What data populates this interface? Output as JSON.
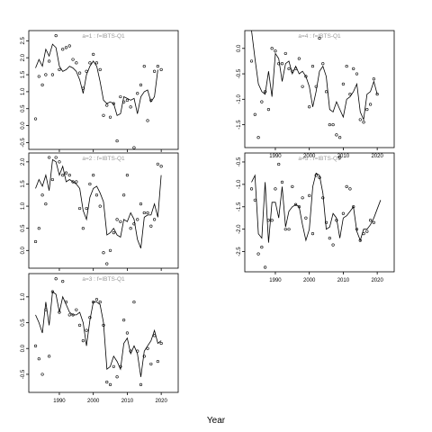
{
  "chart_data": {
    "type": "line",
    "xlabel": "Year",
    "xlim": [
      1981,
      2025
    ],
    "xticks": [
      1990,
      2000,
      2010,
      2020
    ],
    "grid": false,
    "panels": [
      {
        "title": "a=1  :  f=IBTS-Q1",
        "ylim": [
          -0.7,
          2.8
        ],
        "yticks": [
          -0.5,
          0.0,
          0.5,
          1.0,
          1.5,
          2.0,
          2.5
        ],
        "line_x": [
          1983,
          1984,
          1985,
          1986,
          1987,
          1988,
          1989,
          1990,
          1991,
          1992,
          1993,
          1994,
          1995,
          1996,
          1997,
          1998,
          1999,
          2000,
          2001,
          2002,
          2003,
          2004,
          2005,
          2006,
          2007,
          2008,
          2009,
          2010,
          2011,
          2012,
          2013,
          2014,
          2015,
          2016,
          2017,
          2018,
          2019
        ],
        "line_y": [
          1.7,
          1.95,
          1.75,
          2.25,
          2.05,
          2.4,
          2.3,
          1.75,
          1.6,
          1.65,
          1.75,
          1.7,
          1.6,
          1.35,
          0.95,
          1.5,
          1.75,
          1.9,
          1.75,
          1.3,
          0.75,
          0.65,
          0.7,
          0.65,
          0.3,
          0.35,
          0.85,
          0.8,
          0.75,
          0.8,
          0.35,
          0.85,
          1.0,
          1.05,
          0.7,
          0.85,
          1.65
        ],
        "points_x": [
          1983,
          1984,
          1985,
          1986,
          1987,
          1988,
          1989,
          1990,
          1991,
          1992,
          1993,
          1994,
          1995,
          1996,
          1997,
          1998,
          1999,
          2000,
          2001,
          2002,
          2003,
          2004,
          2005,
          2006,
          2007,
          2008,
          2009,
          2010,
          2011,
          2012,
          2013,
          2014,
          2015,
          2016,
          2017,
          2018,
          2019,
          2020
        ],
        "points_y": [
          0.2,
          1.45,
          1.2,
          1.5,
          1.9,
          1.5,
          2.65,
          1.65,
          2.25,
          2.3,
          2.35,
          1.95,
          1.85,
          1.55,
          1.1,
          1.6,
          1.85,
          2.1,
          1.85,
          1.65,
          0.3,
          0.6,
          0.25,
          0.65,
          -0.45,
          0.85,
          0.7,
          0.75,
          0.55,
          -0.65,
          0.95,
          1.2,
          1.75,
          0.15,
          0.75,
          1.6,
          1.75,
          1.65
        ]
      },
      {
        "title": "a=2  :  f=IBTS-Q1",
        "ylim": [
          -0.4,
          2.2
        ],
        "yticks": [
          0.0,
          0.5,
          1.0,
          1.5,
          2.0
        ],
        "line_x": [
          1983,
          1984,
          1985,
          1986,
          1987,
          1988,
          1989,
          1990,
          1991,
          1992,
          1993,
          1994,
          1995,
          1996,
          1997,
          1998,
          1999,
          2000,
          2001,
          2002,
          2003,
          2004,
          2005,
          2006,
          2007,
          2008,
          2009,
          2010,
          2011,
          2012,
          2013,
          2014,
          2015,
          2016,
          2017,
          2018,
          2019,
          2020
        ],
        "line_y": [
          1.4,
          1.6,
          1.45,
          1.7,
          1.35,
          2.05,
          2.0,
          1.7,
          1.9,
          1.55,
          1.6,
          1.55,
          1.5,
          1.4,
          0.9,
          0.7,
          1.2,
          1.4,
          1.45,
          1.3,
          1.1,
          0.35,
          0.4,
          0.5,
          0.35,
          0.3,
          0.7,
          0.65,
          0.85,
          0.7,
          0.25,
          0.05,
          0.75,
          0.8,
          0.8,
          1.05,
          0.75,
          1.7
        ],
        "points_x": [
          1983,
          1984,
          1985,
          1986,
          1987,
          1988,
          1989,
          1990,
          1991,
          1992,
          1993,
          1994,
          1995,
          1996,
          1997,
          1998,
          1999,
          2000,
          2001,
          2002,
          2003,
          2004,
          2005,
          2006,
          2007,
          2008,
          2009,
          2010,
          2011,
          2012,
          2013,
          2014,
          2015,
          2016,
          2017,
          2018,
          2019,
          2020
        ],
        "points_y": [
          0.2,
          0.5,
          1.25,
          1.05,
          2.1,
          1.6,
          2.1,
          2.0,
          1.7,
          1.75,
          1.7,
          1.55,
          1.55,
          0.95,
          0.5,
          0.95,
          1.5,
          1.7,
          1.25,
          1.0,
          -0.05,
          -0.3,
          0.0,
          0.4,
          0.7,
          0.65,
          1.25,
          1.7,
          0.5,
          0.6,
          0.7,
          1.05,
          0.85,
          0.85,
          0.55,
          0.7,
          1.95,
          1.9
        ]
      },
      {
        "title": "a=3  :  f=IBTS-Q1",
        "ylim": [
          -0.85,
          1.45
        ],
        "yticks": [
          -0.5,
          0.0,
          0.5,
          1.0
        ],
        "line_x": [
          1983,
          1984,
          1985,
          1986,
          1987,
          1988,
          1989,
          1990,
          1991,
          1992,
          1993,
          1994,
          1995,
          1996,
          1997,
          1998,
          1999,
          2000,
          2001,
          2002,
          2003,
          2004,
          2005,
          2006,
          2007,
          2008,
          2009,
          2010,
          2011,
          2012,
          2013,
          2014,
          2015,
          2016,
          2017,
          2018,
          2019,
          2020
        ],
        "line_y": [
          0.65,
          0.5,
          0.3,
          0.9,
          0.45,
          1.1,
          1.05,
          0.7,
          1.0,
          0.85,
          0.7,
          0.65,
          0.65,
          0.7,
          0.5,
          0.05,
          0.55,
          0.9,
          0.9,
          0.85,
          0.5,
          -0.4,
          -0.35,
          -0.15,
          -0.25,
          -0.4,
          0.1,
          0.2,
          -0.1,
          0.05,
          -0.1,
          -0.55,
          -0.05,
          0.05,
          0.15,
          0.35,
          0.1,
          0.15
        ],
        "points_x": [
          1983,
          1984,
          1985,
          1986,
          1987,
          1988,
          1989,
          1990,
          1991,
          1992,
          1993,
          1994,
          1995,
          1996,
          1997,
          1998,
          1999,
          2000,
          2001,
          2002,
          2003,
          2004,
          2005,
          2006,
          2007,
          2008,
          2009,
          2010,
          2011,
          2012,
          2013,
          2014,
          2015,
          2016,
          2017,
          2018,
          2019,
          2020
        ],
        "points_y": [
          0.05,
          -0.2,
          -0.5,
          0.75,
          -0.15,
          1.1,
          1.35,
          0.7,
          1.3,
          0.9,
          0.65,
          0.65,
          0.75,
          0.45,
          0.15,
          0.35,
          0.6,
          0.9,
          0.95,
          0.9,
          0.45,
          -0.65,
          -0.7,
          -0.35,
          -0.55,
          -0.35,
          0.55,
          0.3,
          -0.05,
          0.9,
          -0.05,
          -0.7,
          -0.15,
          0.0,
          -0.3,
          0.25,
          -0.25,
          0.1
        ]
      },
      {
        "title": "a=4  :  f=IBTS-Q1",
        "ylim": [
          -1.95,
          0.35
        ],
        "yticks": [
          -1.5,
          -1.0,
          -0.5,
          0.0
        ],
        "line_x": [
          1983,
          1984,
          1985,
          1986,
          1987,
          1988,
          1989,
          1990,
          1991,
          1992,
          1993,
          1994,
          1995,
          1996,
          1997,
          1998,
          1999,
          2000,
          2001,
          2002,
          2003,
          2004,
          2005,
          2006,
          2007,
          2008,
          2009,
          2010,
          2011,
          2012,
          2013,
          2014,
          2015,
          2016,
          2017,
          2018,
          2019,
          2020
        ],
        "line_y": [
          0.35,
          -0.2,
          -0.7,
          -0.85,
          -0.9,
          -0.45,
          -0.95,
          -0.1,
          -0.2,
          -0.65,
          -0.3,
          -0.25,
          -0.5,
          -0.35,
          -0.5,
          -0.45,
          -0.55,
          -0.75,
          -1.15,
          -0.85,
          -0.45,
          -0.35,
          -0.55,
          -1.2,
          -1.25,
          -1.05,
          -1.2,
          -1.35,
          -1.0,
          -0.95,
          -0.85,
          -0.7,
          -1.25,
          -1.4,
          -0.9,
          -0.85,
          -0.65,
          -0.9
        ],
        "points_x": [
          1983,
          1984,
          1985,
          1986,
          1987,
          1988,
          1989,
          1990,
          1991,
          1992,
          1993,
          1994,
          1995,
          1996,
          1997,
          1998,
          1999,
          2000,
          2001,
          2002,
          2003,
          2004,
          2005,
          2006,
          2007,
          2008,
          2009,
          2010,
          2011,
          2012,
          2013,
          2014,
          2015,
          2016,
          2017,
          2018,
          2019,
          2020
        ],
        "points_y": [
          -0.25,
          -1.3,
          -1.75,
          -1.05,
          -0.85,
          -1.2,
          0.0,
          -0.05,
          -0.3,
          -0.3,
          -0.1,
          -0.4,
          -0.45,
          -0.4,
          -0.2,
          -0.75,
          -0.55,
          -1.15,
          -0.35,
          -0.75,
          0.2,
          -0.3,
          -0.85,
          -1.5,
          -1.5,
          -1.7,
          -1.75,
          -0.7,
          -0.35,
          -0.9,
          -0.4,
          -0.5,
          -1.4,
          -1.45,
          -1.2,
          -1.1,
          -0.6,
          -0.9
        ]
      },
      {
        "title": "a=5  :  f=IBTS-Q1",
        "ylim": [
          -2.95,
          -0.3
        ],
        "yticks": [
          -2.5,
          -2.0,
          -1.5,
          -1.0,
          -0.5
        ],
        "line_x": [
          1983,
          1984,
          1985,
          1986,
          1987,
          1988,
          1989,
          1990,
          1991,
          1992,
          1993,
          1994,
          1995,
          1996,
          1997,
          1998,
          1999,
          2000,
          2001,
          2002,
          2003,
          2004,
          2005,
          2006,
          2007,
          2008,
          2009,
          2010,
          2011,
          2012,
          2013,
          2014,
          2015,
          2016,
          2017,
          2018,
          2019,
          2020,
          2021
        ],
        "line_y": [
          -0.95,
          -0.8,
          -2.1,
          -2.2,
          -0.95,
          -2.3,
          -1.4,
          -1.4,
          -1.75,
          -1.05,
          -1.95,
          -1.6,
          -1.5,
          -1.45,
          -1.5,
          -1.9,
          -2.25,
          -2.0,
          -1.05,
          -0.75,
          -0.8,
          -1.2,
          -2.0,
          -1.95,
          -1.65,
          -1.75,
          -2.2,
          -1.75,
          -1.7,
          -1.6,
          -1.5,
          -2.05,
          -2.25,
          -2.0,
          -2.0,
          -1.9,
          -1.75,
          -1.55,
          -1.35
        ],
        "points_x": [
          1983,
          1984,
          1985,
          1986,
          1987,
          1988,
          1989,
          1990,
          1991,
          1992,
          1993,
          1994,
          1995,
          1996,
          1997,
          1998,
          1999,
          2000,
          2001,
          2002,
          2003,
          2004,
          2005,
          2006,
          2007,
          2008,
          2009,
          2010,
          2011,
          2012,
          2013,
          2014,
          2015,
          2016,
          2017,
          2018,
          2019,
          2020,
          2021
        ],
        "points_y": [
          -1.1,
          -1.35,
          -2.55,
          -2.4,
          -2.85,
          -1.8,
          -1.8,
          -1.1,
          -0.55,
          -0.95,
          -2.0,
          -2.0,
          -1.05,
          -1.45,
          -1.5,
          -1.3,
          -1.75,
          -1.25,
          -2.1,
          -0.8,
          -0.85,
          -1.3,
          -1.85,
          -2.2,
          -2.35,
          -1.8,
          -0.4,
          -1.65,
          -1.05,
          -1.1,
          -1.5,
          -2.0,
          -2.25,
          -2.1,
          -2.05,
          -1.8,
          -1.85,
          null,
          null
        ]
      }
    ]
  }
}
